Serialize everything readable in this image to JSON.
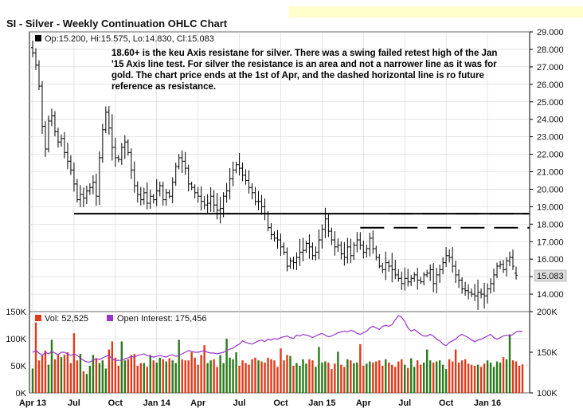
{
  "title": "SI - Silver - Weekly Continuation OHLC Chart",
  "colors": {
    "price_bar": "#000000",
    "vol_up": "#2a7a1a",
    "vol_down": "#e03a1a",
    "oi_line": "#9933cc",
    "panel_border": "#000000",
    "grid": "#cccccc",
    "last_price_box": "#dddddd"
  },
  "price_legend": {
    "text": "Op:15.200, Hi:15.575, Lo:14.830, Cl:15.083",
    "annotation": "18.60+ is the keu Axis resistane for silver.  There was a swing failed retest high of the Jan '15 Axis line test.  For silver the resistance is an area and not a narrower line as it was for gold.  The chart price ends at the 1st of Apr, and the dashed horizontal line is ro future reference as resistance."
  },
  "volume_legend": {
    "vol_text": "Vol: 52,525",
    "oi_text": "Open Interest: 175,456"
  },
  "chart_data": [
    {
      "type": "ohlc",
      "title": "SI - Silver - Weekly Continuation OHLC Chart",
      "y_axis_right": {
        "min": 13.0,
        "max": 29.0,
        "ticks": [
          "29.000",
          "28.000",
          "27.000",
          "26.000",
          "25.000",
          "24.000",
          "23.000",
          "22.000",
          "21.000",
          "20.000",
          "19.000",
          "18.000",
          "17.000",
          "16.000",
          "15.000",
          "14.000"
        ]
      },
      "last_price": "15.083",
      "x_ticks": [
        "Apr 13",
        "Jul",
        "Oct",
        "Jan 14",
        "Apr",
        "Jul",
        "Oct",
        "Jan 15",
        "Apr",
        "Jul",
        "Oct",
        "Jan 16"
      ],
      "x_tick_week_index": [
        0,
        13,
        26,
        39,
        52,
        65,
        78,
        91,
        104,
        117,
        130,
        143
      ],
      "last_ohlc": {
        "open": 15.2,
        "high": 15.575,
        "low": 14.83,
        "close": 15.083
      },
      "closes": [
        27.8,
        27.1,
        25.9,
        23.6,
        22.3,
        23.9,
        24.2,
        23.3,
        22.7,
        22.9,
        22.1,
        21.6,
        21.1,
        20.3,
        19.4,
        19.7,
        19.5,
        19.9,
        20.1,
        20.4,
        19.6,
        21.8,
        23.4,
        24.4,
        23.5,
        22.4,
        21.8,
        21.7,
        22.4,
        22.7,
        22.1,
        21.1,
        20.2,
        19.7,
        19.4,
        19.8,
        19.2,
        19.6,
        19.4,
        19.9,
        20.2,
        19.4,
        19.8,
        19.6,
        20.4,
        21.3,
        21.8,
        21.6,
        21.2,
        20.3,
        20.1,
        19.8,
        19.6,
        19.3,
        19.1,
        19.2,
        19.6,
        19.1,
        18.8,
        18.9,
        19.6,
        19.9,
        20.6,
        21.1,
        21.4,
        21.2,
        20.8,
        20.5,
        20.1,
        19.8,
        19.3,
        19.3,
        19.0,
        18.6,
        17.8,
        17.4,
        17.2,
        17.1,
        16.7,
        16.4,
        15.6,
        15.9,
        15.8,
        16.1,
        16.4,
        16.5,
        16.9,
        16.7,
        16.2,
        16.4,
        17.1,
        17.7,
        18.3,
        17.6,
        17.1,
        16.7,
        16.8,
        16.3,
        16.1,
        16.7,
        16.2,
        16.8,
        17.1,
        16.8,
        16.4,
        16.6,
        17.2,
        16.6,
        16.1,
        15.6,
        15.4,
        15.8,
        15.6,
        15.4,
        15.1,
        14.9,
        14.6,
        14.9,
        14.7,
        14.9,
        15.1,
        14.8,
        14.7,
        15.1,
        15.2,
        15.4,
        14.6,
        15.1,
        15.4,
        15.8,
        16.2,
        16.1,
        15.6,
        15.1,
        14.8,
        14.3,
        14.2,
        14.1,
        14.0,
        13.9,
        14.1,
        14.0,
        13.9,
        14.3,
        14.6,
        15.1,
        15.6,
        15.7,
        15.4,
        15.9,
        16.1,
        15.6,
        15.083
      ],
      "key_resistance_level": 18.6,
      "dashed_resistance_levels": [
        18.6,
        17.8
      ]
    },
    {
      "type": "bar",
      "title": "",
      "y_axis_left": {
        "min": 0,
        "max": 150000,
        "ticks": [
          "150K",
          "100K",
          "50K",
          "0K"
        ]
      },
      "y_axis_right": {
        "min": 100000,
        "max": 200000,
        "ticks": [
          "200K",
          "150K",
          "100K"
        ]
      },
      "series": [
        {
          "name": "Vol",
          "values": [
            45000,
            130000,
            60000,
            70000,
            78000,
            52000,
            98000,
            62000,
            70000,
            66000,
            70000,
            75000,
            55000,
            110000,
            60000,
            72000,
            40000,
            35000,
            50000,
            70000,
            64000,
            55000,
            60000,
            45000,
            80000,
            95000,
            65000,
            50000,
            95000,
            60000,
            62000,
            70000,
            72000,
            50000,
            55000,
            55000,
            48000,
            70000,
            60000,
            56000,
            65000,
            62000,
            58000,
            64000,
            60000,
            55000,
            98000,
            62000,
            60000,
            60000,
            75000,
            65000,
            52000,
            70000,
            88000,
            55000,
            60000,
            62000,
            48000,
            70000,
            55000,
            100000,
            65000,
            62000,
            75000,
            50000,
            60000,
            55000,
            52000,
            62000,
            65000,
            60000,
            58000,
            56000,
            65000,
            62000,
            60000,
            48000,
            82000,
            60000,
            70000,
            68000,
            50000,
            55000,
            50000,
            62000,
            54000,
            62000,
            60000,
            48000,
            85000,
            56000,
            58000,
            56000,
            44000,
            54000,
            76000,
            52000,
            48000,
            62000,
            60000,
            55000,
            56000,
            90000,
            50000,
            54000,
            58000,
            56000,
            58000,
            60000,
            50000,
            62000,
            56000,
            52000,
            48000,
            58000,
            62000,
            52000,
            46000,
            64000,
            48000,
            60000,
            52000,
            56000,
            80000,
            60000,
            56000,
            58000,
            60000,
            52000,
            44000,
            62000,
            58000,
            80000,
            56000,
            60000,
            62000,
            54000,
            52000,
            50000,
            52000,
            48000,
            54000,
            60000,
            56000,
            48000,
            58000,
            56000,
            66000,
            62000,
            108000,
            60000,
            58000,
            50000,
            52525
          ]
        },
        {
          "name": "Open Interest",
          "values": [
            150000,
            152000,
            149000,
            146000,
            150000,
            148000,
            151000,
            149000,
            147000,
            150000,
            150000,
            148000,
            146000,
            148000,
            146000,
            143000,
            140000,
            138000,
            138000,
            140000,
            142000,
            141000,
            143000,
            145000,
            146000,
            142000,
            140000,
            140000,
            140000,
            142000,
            143000,
            145000,
            144000,
            146000,
            147000,
            148000,
            146000,
            145000,
            144000,
            145000,
            146000,
            145000,
            144000,
            146000,
            147000,
            145000,
            146000,
            148000,
            150000,
            152000,
            151000,
            150000,
            150000,
            151000,
            152000,
            150000,
            149000,
            149000,
            148000,
            149000,
            150000,
            152000,
            154000,
            155000,
            158000,
            160000,
            164000,
            162000,
            161000,
            160000,
            162000,
            164000,
            165000,
            163000,
            166000,
            165000,
            167000,
            166000,
            168000,
            169000,
            170000,
            168000,
            167000,
            171000,
            170000,
            172000,
            171000,
            170000,
            168000,
            170000,
            172000,
            173000,
            171000,
            169000,
            170000,
            172000,
            174000,
            175000,
            176000,
            175000,
            177000,
            176000,
            173000,
            172000,
            174000,
            176000,
            180000,
            182000,
            180000,
            178000,
            182000,
            183000,
            182000,
            184000,
            190000,
            195000,
            193000,
            188000,
            180000,
            176000,
            178000,
            175000,
            172000,
            170000,
            170000,
            172000,
            170000,
            166000,
            164000,
            160000,
            158000,
            162000,
            164000,
            166000,
            170000,
            172000,
            170000,
            168000,
            165000,
            163000,
            165000,
            166000,
            168000,
            170000,
            172000,
            168000,
            166000,
            168000,
            170000,
            171000,
            170000,
            172000,
            175000,
            176000,
            175456
          ]
        }
      ]
    }
  ]
}
